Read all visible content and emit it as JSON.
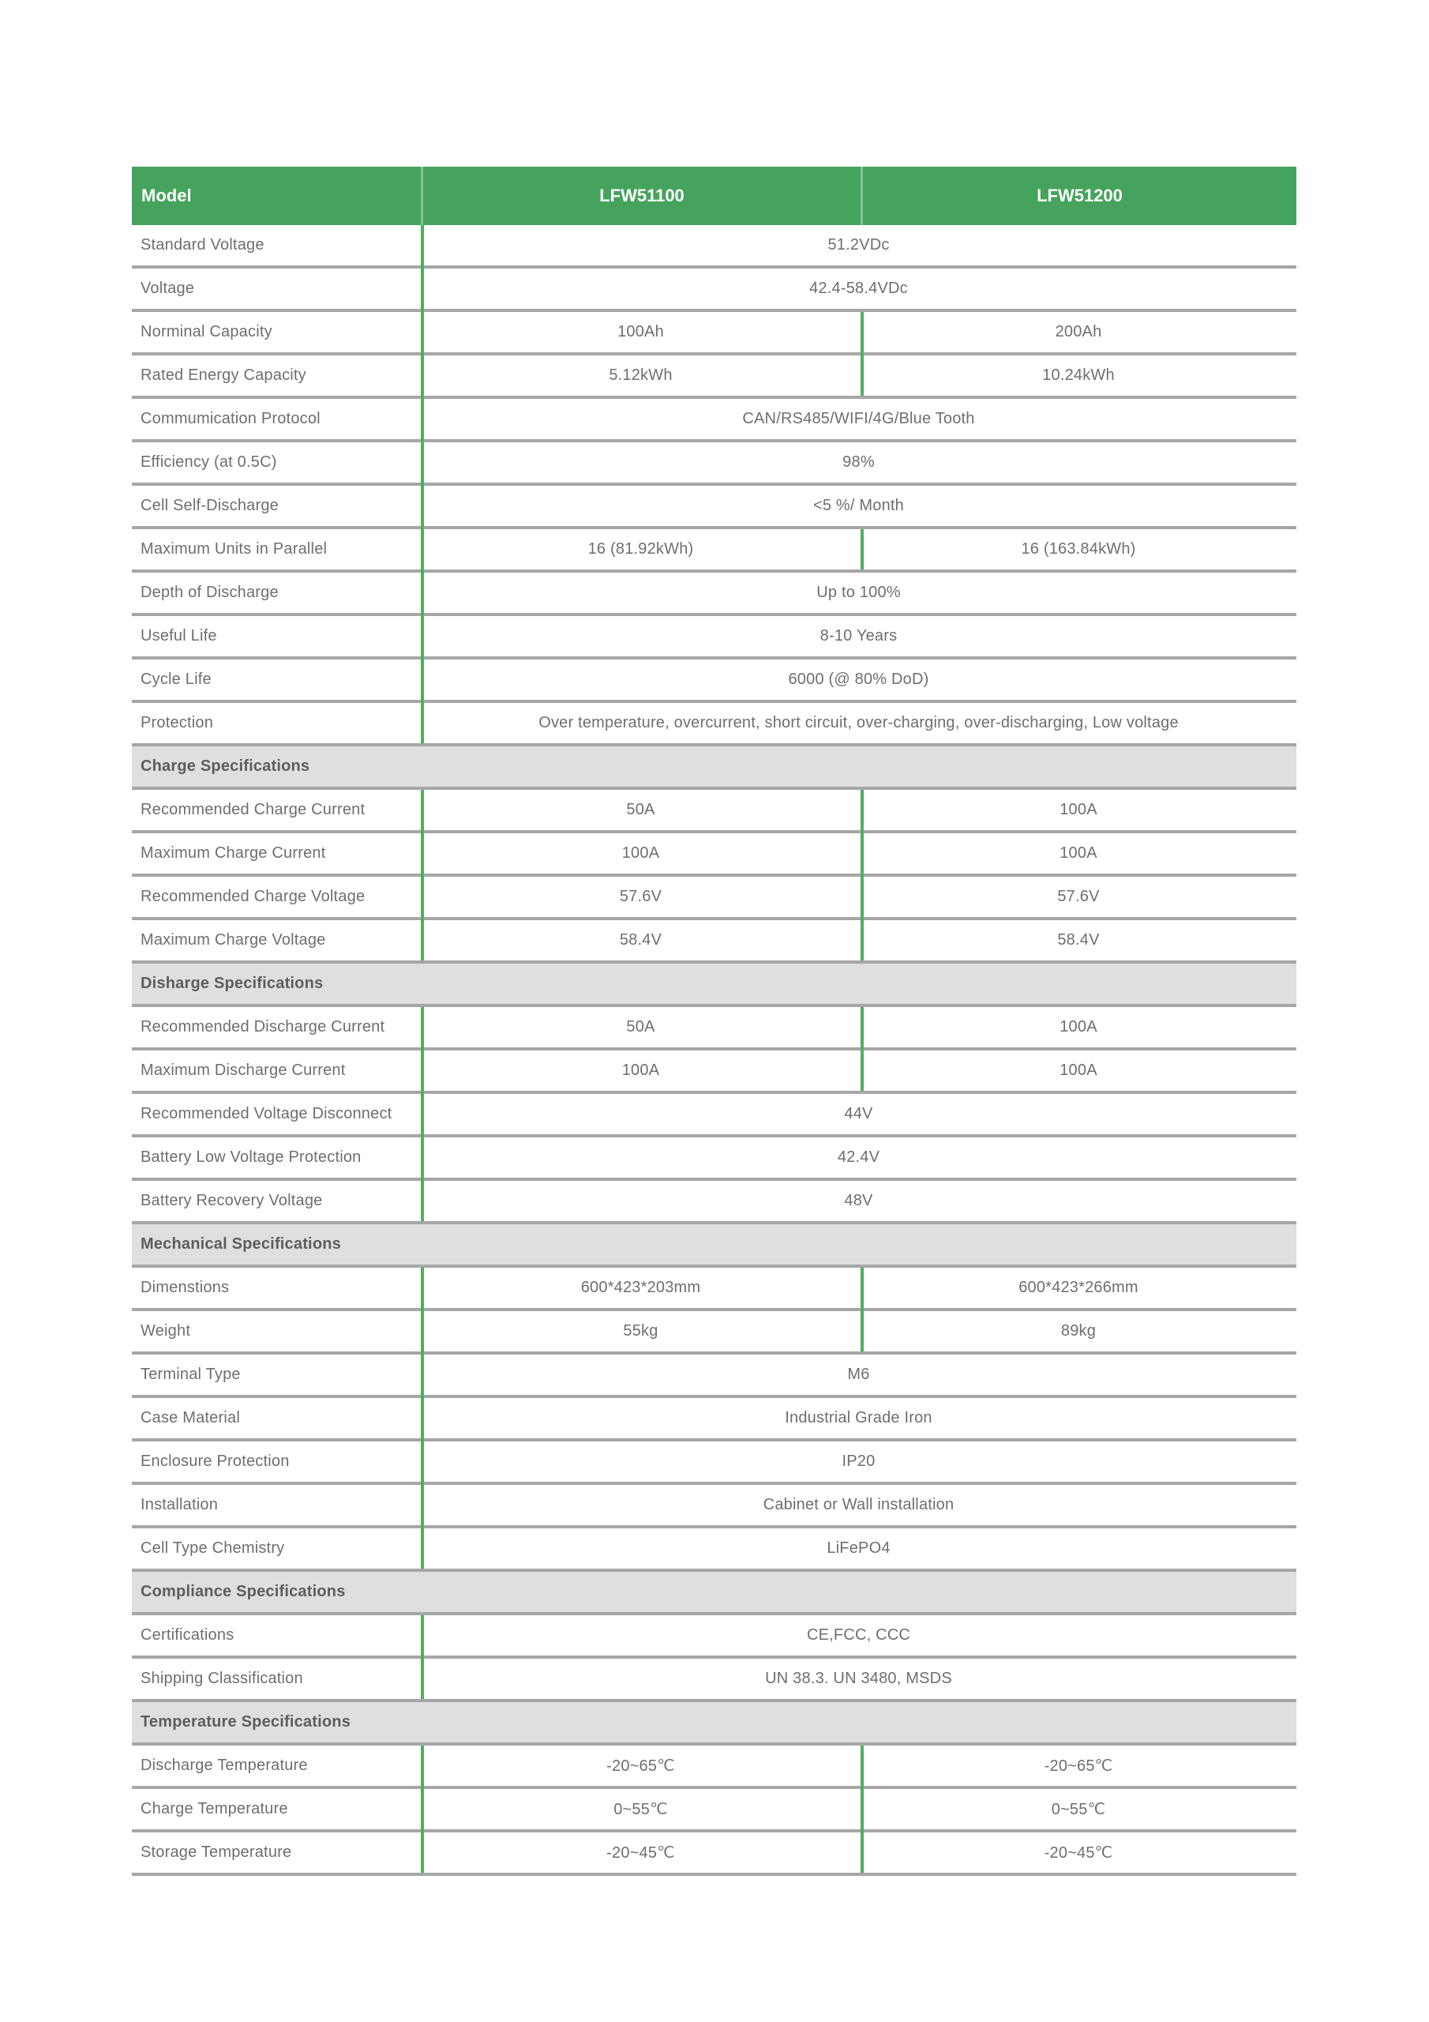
{
  "table": {
    "header": {
      "model_label": "Model",
      "columns": [
        "LFW51100",
        "LFW51200"
      ]
    },
    "sections": [
      {
        "title": "",
        "rows": [
          {
            "label": "Standard Voltage",
            "span": "51.2VDc"
          },
          {
            "label": "Voltage",
            "span": "42.4-58.4VDc"
          },
          {
            "label": "Norminal Capacity",
            "values": [
              "100Ah",
              "200Ah"
            ]
          },
          {
            "label": "Rated Energy Capacity",
            "values": [
              "5.12kWh",
              "10.24kWh"
            ]
          },
          {
            "label": "Commumication Protocol",
            "span": "CAN/RS485/WIFI/4G/Blue Tooth"
          },
          {
            "label": "Efficiency (at 0.5C)",
            "span": "98%"
          },
          {
            "label": "Cell Self-Discharge",
            "span": "<5 %/ Month"
          },
          {
            "label": "Maximum Units in Parallel",
            "values": [
              "16 (81.92kWh)",
              "16 (163.84kWh)"
            ]
          },
          {
            "label": "Depth of Discharge",
            "span": "Up to 100%"
          },
          {
            "label": "Useful Life",
            "span": "8-10 Years"
          },
          {
            "label": "Cycle Life",
            "span": "6000 (@ 80% DoD)"
          },
          {
            "label": "Protection",
            "span": "Over temperature, overcurrent, short circuit, over-charging, over-discharging, Low voltage"
          }
        ]
      },
      {
        "title": "Charge Specifications",
        "rows": [
          {
            "label": "Recommended Charge Current",
            "values": [
              "50A",
              "100A"
            ]
          },
          {
            "label": "Maximum Charge Current",
            "values": [
              "100A",
              "100A"
            ]
          },
          {
            "label": "Recommended Charge Voltage",
            "values": [
              "57.6V",
              "57.6V"
            ]
          },
          {
            "label": "Maximum Charge Voltage",
            "values": [
              "58.4V",
              "58.4V"
            ]
          }
        ]
      },
      {
        "title": "Disharge Specifications",
        "rows": [
          {
            "label": "Recommended Discharge Current",
            "values": [
              "50A",
              "100A"
            ]
          },
          {
            "label": "Maximum Discharge Current",
            "values": [
              "100A",
              "100A"
            ]
          },
          {
            "label": "Recommended Voltage Disconnect",
            "span": "44V"
          },
          {
            "label": "Battery Low Voltage Protection",
            "span": "42.4V"
          },
          {
            "label": "Battery Recovery Voltage",
            "span": "48V"
          }
        ]
      },
      {
        "title": "Mechanical Specifications",
        "rows": [
          {
            "label": "Dimenstions",
            "values": [
              "600*423*203mm",
              "600*423*266mm"
            ]
          },
          {
            "label": "Weight",
            "values": [
              "55kg",
              "89kg"
            ]
          },
          {
            "label": "Terminal Type",
            "span": "M6"
          },
          {
            "label": "Case Material",
            "span": "Industrial Grade Iron"
          },
          {
            "label": "Enclosure Protection",
            "span": "IP20"
          },
          {
            "label": "Installation",
            "span": "Cabinet or Wall installation"
          },
          {
            "label": "Cell Type Chemistry",
            "span": "LiFePO4"
          }
        ]
      },
      {
        "title": "Compliance Specifications",
        "rows": [
          {
            "label": "Certifications",
            "span": "CE,FCC, CCC"
          },
          {
            "label": "Shipping Classification",
            "span": "UN 38.3. UN 3480, MSDS"
          }
        ]
      },
      {
        "title": "Temperature Specifications",
        "rows": [
          {
            "label": "Discharge Temperature",
            "values": [
              "-20~65℃",
              "-20~65℃"
            ]
          },
          {
            "label": "Charge Temperature",
            "values": [
              "0~55℃",
              "0~55℃"
            ]
          },
          {
            "label": "Storage Temperature",
            "values": [
              "-20~45℃",
              "-20~45℃"
            ]
          }
        ]
      }
    ],
    "colors": {
      "header_green": "#46a35d",
      "divider_green": "#4fae61",
      "separator_gray": "#a6a6a6",
      "section_band_gray": "#dfdfdf",
      "body_text_gray": "#6e6e6e"
    }
  }
}
